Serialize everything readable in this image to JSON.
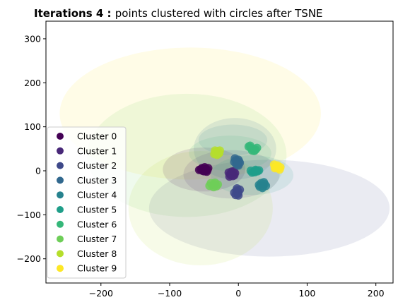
{
  "chart_data": {
    "type": "scatter",
    "title_prefix": "Iterations 4 : ",
    "title_suffix": "points clustered with circles after TSNE",
    "xlabel": "",
    "ylabel": "",
    "xlim": [
      -280,
      225
    ],
    "ylim": [
      -255,
      340
    ],
    "xticks": [
      -200,
      -100,
      0,
      100,
      200
    ],
    "yticks": [
      -200,
      -100,
      0,
      100,
      200,
      300
    ],
    "grid": false,
    "legend_position": "lower-left",
    "series": [
      {
        "name": "Cluster 0",
        "color": "#440154",
        "center": [
          -50,
          3
        ],
        "radius": [
          60,
          50
        ],
        "points": [
          [
            -55,
            3
          ],
          [
            -52,
            0
          ],
          [
            -48,
            5
          ],
          [
            -45,
            2
          ],
          [
            -53,
            6
          ],
          [
            -50,
            -1
          ],
          [
            -46,
            -2
          ],
          [
            -57,
            2
          ],
          [
            -44,
            6
          ],
          [
            -49,
            8
          ],
          [
            -51,
            4
          ],
          [
            -47,
            0
          ]
        ]
      },
      {
        "name": "Cluster 1",
        "color": "#482878",
        "center": [
          -10,
          -8
        ],
        "radius": [
          70,
          55
        ],
        "points": [
          [
            -12,
            -8
          ],
          [
            -9,
            -5
          ],
          [
            -6,
            -10
          ],
          [
            -13,
            -13
          ],
          [
            -10,
            -2
          ],
          [
            -5,
            -5
          ],
          [
            -8,
            -12
          ],
          [
            -14,
            -4
          ],
          [
            -11,
            -10
          ],
          [
            -7,
            -1
          ]
        ]
      },
      {
        "name": "Cluster 2",
        "color": "#3e4989",
        "center": [
          45,
          -85
        ],
        "radius": [
          175,
          110
        ],
        "points": [
          [
            -3,
            -45
          ],
          [
            0,
            -48
          ],
          [
            -1,
            -52
          ],
          [
            -6,
            -50
          ],
          [
            2,
            -43
          ],
          [
            -4,
            -55
          ],
          [
            -2,
            -40
          ],
          [
            0,
            -56
          ]
        ]
      },
      {
        "name": "Cluster 3",
        "color": "#31688e",
        "center": [
          -5,
          50
        ],
        "radius": [
          60,
          70
        ],
        "points": [
          [
            -5,
            28
          ],
          [
            -2,
            22
          ],
          [
            0,
            25
          ],
          [
            -6,
            20
          ],
          [
            -3,
            15
          ],
          [
            2,
            18
          ],
          [
            0,
            12
          ],
          [
            -4,
            24
          ],
          [
            1,
            21
          ],
          [
            -1,
            14
          ]
        ]
      },
      {
        "name": "Cluster 4",
        "color": "#26828e",
        "center": [
          -8,
          70
        ],
        "radius": [
          50,
          35
        ],
        "points": [
          [
            30,
            -32
          ],
          [
            33,
            -28
          ],
          [
            36,
            -35
          ],
          [
            35,
            -39
          ],
          [
            38,
            -30
          ],
          [
            40,
            -34
          ],
          [
            31,
            -36
          ],
          [
            37,
            -26
          ]
        ]
      },
      {
        "name": "Cluster 5",
        "color": "#1f9e89",
        "center": [
          20,
          -10
        ],
        "radius": [
          60,
          45
        ],
        "points": [
          [
            18,
            0
          ],
          [
            22,
            -2
          ],
          [
            25,
            2
          ],
          [
            28,
            -1
          ],
          [
            20,
            -4
          ],
          [
            30,
            1
          ],
          [
            24,
            -3
          ],
          [
            26,
            0
          ]
        ]
      },
      {
        "name": "Cluster 6",
        "color": "#35b779",
        "center": [
          -12,
          40
        ],
        "radius": [
          60,
          40
        ],
        "points": [
          [
            15,
            55
          ],
          [
            18,
            52
          ],
          [
            22,
            50
          ],
          [
            25,
            48
          ],
          [
            20,
            46
          ],
          [
            27,
            52
          ],
          [
            17,
            57
          ],
          [
            23,
            45
          ]
        ]
      },
      {
        "name": "Cluster 7",
        "color": "#6ece58",
        "center": [
          -75,
          35
        ],
        "radius": [
          145,
          140
        ],
        "points": [
          [
            -38,
            -33
          ],
          [
            -35,
            -30
          ],
          [
            -32,
            -35
          ],
          [
            -40,
            -28
          ],
          [
            -36,
            -37
          ],
          [
            -30,
            -31
          ],
          [
            -34,
            -27
          ],
          [
            -42,
            -34
          ]
        ]
      },
      {
        "name": "Cluster 8",
        "color": "#b5de2b",
        "center": [
          -55,
          -85
        ],
        "radius": [
          105,
          130
        ],
        "points": [
          [
            -33,
            42
          ],
          [
            -30,
            45
          ],
          [
            -28,
            40
          ],
          [
            -35,
            38
          ],
          [
            -31,
            36
          ],
          [
            -27,
            46
          ],
          [
            -34,
            46
          ],
          [
            -29,
            39
          ]
        ]
      },
      {
        "name": "Cluster 9",
        "color": "#fde725",
        "center": [
          -70,
          130
        ],
        "radius": [
          190,
          150
        ],
        "points": [
          [
            52,
            14
          ],
          [
            56,
            10
          ],
          [
            58,
            6
          ],
          [
            54,
            9
          ],
          [
            60,
            3
          ],
          [
            57,
            12
          ],
          [
            53,
            6
          ],
          [
            61,
            8
          ]
        ]
      }
    ]
  }
}
